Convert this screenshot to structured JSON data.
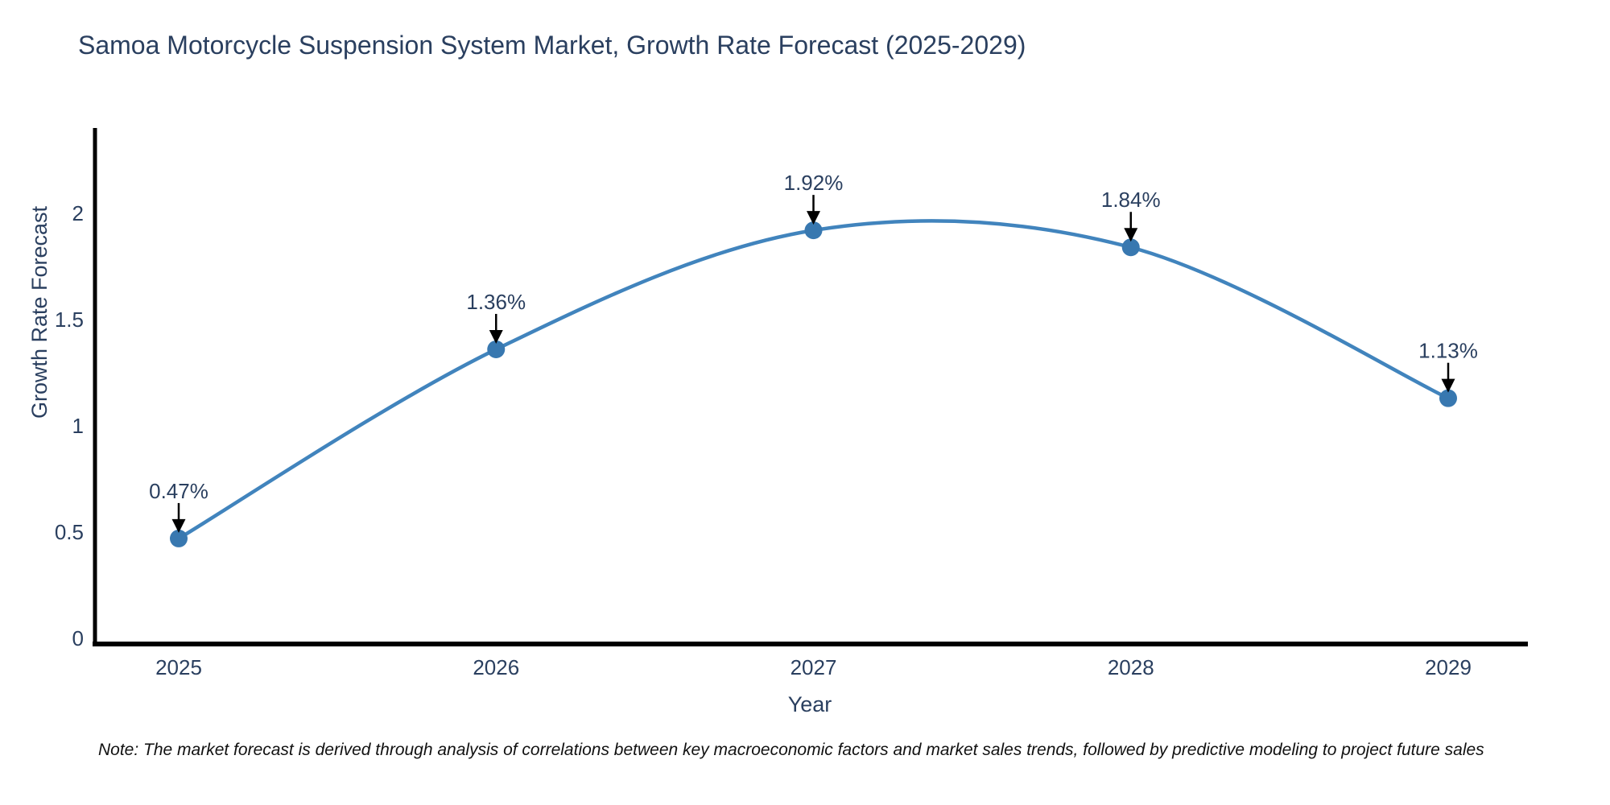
{
  "note": "Note: The market forecast is derived through analysis of correlations between key macroeconomic factors and market sales trends, followed by predictive modeling to project future sales",
  "colors": {
    "text": "#2a3f5f",
    "axis": "#000000",
    "line": "#4184bd",
    "marker": "#3878b0",
    "arrow": "#000000",
    "note_text": "#111111",
    "background": "#ffffff"
  },
  "chart_data": {
    "type": "line",
    "title": "Samoa Motorcycle Suspension System Market, Growth Rate Forecast (2025-2029)",
    "x": [
      2025,
      2026,
      2027,
      2028,
      2029
    ],
    "y": [
      0.47,
      1.36,
      1.92,
      1.84,
      1.13
    ],
    "point_labels": [
      "0.47%",
      "1.36%",
      "1.92%",
      "1.84%",
      "1.13%"
    ],
    "xlabel": "Year",
    "ylabel": "Growth Rate Forecast",
    "yticks": [
      0,
      0.5,
      1,
      1.5,
      2
    ],
    "ylim": [
      0,
      2.4
    ],
    "line_shape": "spline",
    "grid": false,
    "legend": "none",
    "annotations": "value labels with down arrows above each point"
  }
}
